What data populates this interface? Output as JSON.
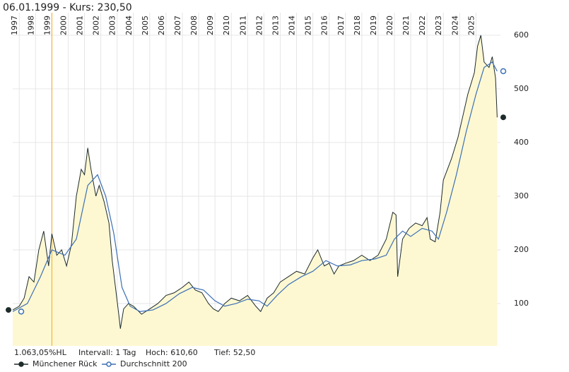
{
  "chart_data": {
    "type": "line",
    "title": "06.01.1999  -  Kurs: 230,50",
    "stats": [
      "1.063,05%HL",
      "Intervall: 1 Tag",
      "Hoch:  610,60",
      "Tief:  52,50"
    ],
    "xlim": [
      1996.6,
      2026.5
    ],
    "xticks": [
      1997,
      1998,
      1999,
      2000,
      2001,
      2002,
      2003,
      2004,
      2005,
      2006,
      2007,
      2008,
      2009,
      2010,
      2011,
      2012,
      2013,
      2014,
      2015,
      2016,
      2017,
      2018,
      2019,
      2020,
      2021,
      2022,
      2023,
      2024,
      2025
    ],
    "ylim": [
      21,
      642
    ],
    "yticks": [
      100,
      200,
      300,
      400,
      500,
      600
    ],
    "grid": true,
    "cursor_x": 1999.0,
    "area_color": "#fdf8d2",
    "cursor_color": "#f5a623",
    "series": [
      {
        "name": "Münchener Rück",
        "color": "#1e2b2b",
        "x": [
          1996.6,
          1997.0,
          1997.3,
          1997.6,
          1997.9,
          1998.2,
          1998.5,
          1998.8,
          1999.0,
          1999.3,
          1999.6,
          1999.9,
          2000.2,
          2000.5,
          2000.8,
          2001.0,
          2001.2,
          2001.4,
          2001.7,
          2001.9,
          2002.2,
          2002.5,
          2002.7,
          2002.9,
          2003.1,
          2003.2,
          2003.4,
          2003.7,
          2004.0,
          2004.5,
          2005.0,
          2005.5,
          2006.0,
          2006.5,
          2007.0,
          2007.4,
          2007.8,
          2008.2,
          2008.6,
          2008.9,
          2009.2,
          2009.6,
          2010.0,
          2010.5,
          2011.0,
          2011.5,
          2011.8,
          2012.2,
          2012.6,
          2013.0,
          2013.5,
          2014.0,
          2014.5,
          2015.0,
          2015.3,
          2015.7,
          2016.0,
          2016.3,
          2016.6,
          2017.0,
          2017.5,
          2018.0,
          2018.5,
          2019.0,
          2019.5,
          2019.9,
          2020.1,
          2020.2,
          2020.5,
          2020.9,
          2021.3,
          2021.7,
          2022.0,
          2022.2,
          2022.5,
          2022.8,
          2023.0,
          2023.5,
          2023.9,
          2024.2,
          2024.5,
          2024.9,
          2025.1,
          2025.3,
          2025.5,
          2025.8,
          2026.0,
          2026.2,
          2026.3
        ],
        "values": [
          88,
          95,
          110,
          150,
          140,
          200,
          235,
          170,
          230,
          190,
          200,
          170,
          210,
          300,
          350,
          340,
          390,
          350,
          300,
          320,
          290,
          250,
          180,
          130,
          80,
          53,
          90,
          100,
          95,
          80,
          90,
          100,
          115,
          120,
          130,
          140,
          125,
          120,
          100,
          90,
          85,
          100,
          110,
          105,
          115,
          95,
          85,
          110,
          120,
          140,
          150,
          160,
          155,
          185,
          200,
          170,
          175,
          155,
          170,
          175,
          180,
          190,
          180,
          190,
          220,
          270,
          265,
          150,
          220,
          240,
          250,
          245,
          260,
          220,
          215,
          270,
          330,
          370,
          410,
          450,
          490,
          530,
          580,
          600,
          550,
          540,
          560,
          520,
          447
        ]
      },
      {
        "name": "Durchschnitt 200",
        "color": "#3b6fb6",
        "x": [
          1996.6,
          1997.5,
          1998.3,
          1999.0,
          1999.8,
          2000.5,
          2001.2,
          2001.8,
          2002.3,
          2002.8,
          2003.3,
          2003.8,
          2004.4,
          2005.2,
          2006.0,
          2006.8,
          2007.6,
          2008.3,
          2009.0,
          2009.6,
          2010.3,
          2011.0,
          2011.7,
          2012.2,
          2012.8,
          2013.5,
          2014.3,
          2015.0,
          2015.8,
          2016.5,
          2017.3,
          2018.0,
          2018.8,
          2019.5,
          2020.0,
          2020.5,
          2021.0,
          2021.7,
          2022.3,
          2022.7,
          2023.2,
          2023.8,
          2024.4,
          2025.0,
          2025.5,
          2026.0,
          2026.3
        ],
        "values": [
          85,
          100,
          150,
          200,
          190,
          220,
          320,
          340,
          300,
          230,
          130,
          95,
          85,
          88,
          100,
          118,
          130,
          125,
          105,
          95,
          100,
          108,
          105,
          95,
          115,
          135,
          150,
          160,
          180,
          170,
          172,
          180,
          183,
          190,
          220,
          235,
          225,
          240,
          235,
          220,
          270,
          340,
          420,
          490,
          540,
          550,
          533
        ]
      }
    ]
  }
}
